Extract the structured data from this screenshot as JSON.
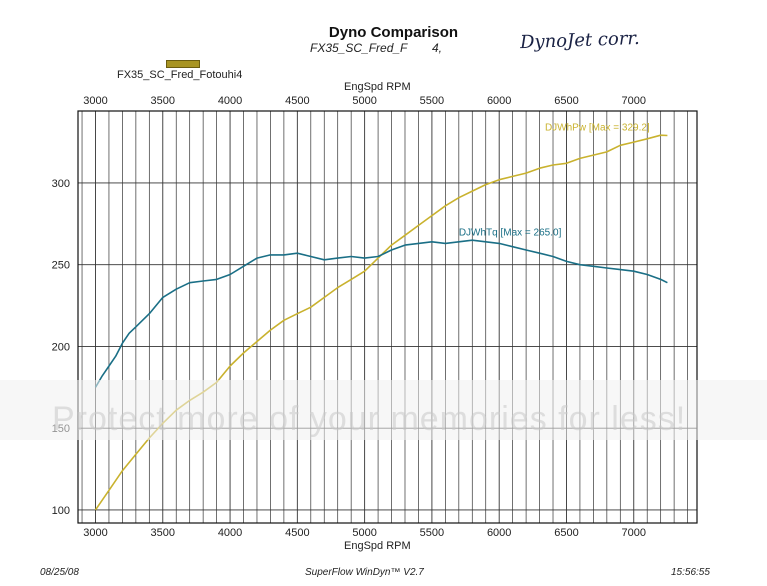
{
  "header": {
    "title": "Dyno Comparison",
    "subtitle": "FX35_SC_Fred_F",
    "subtitle_suffix": "4,",
    "handwritten_note": "DynoJet corr."
  },
  "legend": {
    "label": "FX35_SC_Fred_Fotouhi4",
    "swatch_color": "#a89422"
  },
  "footer": {
    "date": "08/25/08",
    "software": "SuperFlow WinDyn™ V2.7",
    "time": "15:56:55"
  },
  "watermark": {
    "text": "Protect more of your memories for less!"
  },
  "chart_data": {
    "type": "line",
    "xlabel": "EngSpd  RPM",
    "xlim": [
      2870,
      7470
    ],
    "ylim": [
      92,
      344
    ],
    "x_ticks": [
      3000,
      3500,
      4000,
      4500,
      5000,
      5500,
      6000,
      6500,
      7000
    ],
    "y_ticks": [
      100,
      150,
      200,
      250,
      300
    ],
    "grid": true,
    "series": [
      {
        "name": "DJWhPw [Max = 329.2]",
        "color": "#c9b22e",
        "points": [
          [
            3000,
            100
          ],
          [
            3100,
            112
          ],
          [
            3200,
            124
          ],
          [
            3300,
            134
          ],
          [
            3400,
            144
          ],
          [
            3500,
            153
          ],
          [
            3600,
            161
          ],
          [
            3700,
            167
          ],
          [
            3800,
            172
          ],
          [
            3900,
            178
          ],
          [
            4000,
            188
          ],
          [
            4100,
            196
          ],
          [
            4200,
            203
          ],
          [
            4300,
            210
          ],
          [
            4400,
            216
          ],
          [
            4500,
            220
          ],
          [
            4600,
            224
          ],
          [
            4700,
            230
          ],
          [
            4800,
            236
          ],
          [
            4900,
            241
          ],
          [
            5000,
            246
          ],
          [
            5100,
            254
          ],
          [
            5200,
            262
          ],
          [
            5300,
            268
          ],
          [
            5400,
            274
          ],
          [
            5500,
            280
          ],
          [
            5600,
            286
          ],
          [
            5700,
            291
          ],
          [
            5800,
            295
          ],
          [
            5900,
            299
          ],
          [
            6000,
            302
          ],
          [
            6100,
            304
          ],
          [
            6200,
            306
          ],
          [
            6300,
            309
          ],
          [
            6400,
            311
          ],
          [
            6500,
            312
          ],
          [
            6600,
            315
          ],
          [
            6700,
            317
          ],
          [
            6800,
            319
          ],
          [
            6900,
            323
          ],
          [
            7000,
            325
          ],
          [
            7100,
            327
          ],
          [
            7200,
            329.2
          ],
          [
            7250,
            329
          ]
        ]
      },
      {
        "name": "DJWhTq [Max = 265.0]",
        "color": "#1a6f86",
        "points": [
          [
            3000,
            175
          ],
          [
            3050,
            182
          ],
          [
            3100,
            188
          ],
          [
            3150,
            194
          ],
          [
            3200,
            202
          ],
          [
            3250,
            208
          ],
          [
            3300,
            212
          ],
          [
            3400,
            220
          ],
          [
            3500,
            230
          ],
          [
            3600,
            235
          ],
          [
            3700,
            239
          ],
          [
            3800,
            240
          ],
          [
            3900,
            241
          ],
          [
            4000,
            244
          ],
          [
            4100,
            249
          ],
          [
            4200,
            254
          ],
          [
            4300,
            256
          ],
          [
            4400,
            256
          ],
          [
            4500,
            257
          ],
          [
            4600,
            255
          ],
          [
            4700,
            253
          ],
          [
            4800,
            254
          ],
          [
            4900,
            255
          ],
          [
            5000,
            254
          ],
          [
            5100,
            255
          ],
          [
            5200,
            259
          ],
          [
            5300,
            262
          ],
          [
            5400,
            263
          ],
          [
            5500,
            264
          ],
          [
            5600,
            263
          ],
          [
            5700,
            264
          ],
          [
            5800,
            265
          ],
          [
            5900,
            264
          ],
          [
            6000,
            263
          ],
          [
            6100,
            261
          ],
          [
            6200,
            259
          ],
          [
            6300,
            257
          ],
          [
            6400,
            255
          ],
          [
            6500,
            252
          ],
          [
            6600,
            250
          ],
          [
            6700,
            249
          ],
          [
            6800,
            248
          ],
          [
            6900,
            247
          ],
          [
            7000,
            246
          ],
          [
            7100,
            244
          ],
          [
            7200,
            241
          ],
          [
            7250,
            239
          ]
        ]
      }
    ],
    "annotations": [
      {
        "text": "DJWhPw [Max = 329.2]",
        "x": 6340,
        "y": 332,
        "color": "#c9b22e"
      },
      {
        "text": "DJWhTq [Max = 265.0]",
        "x": 5700,
        "y": 268,
        "color": "#1a6f86"
      }
    ]
  }
}
